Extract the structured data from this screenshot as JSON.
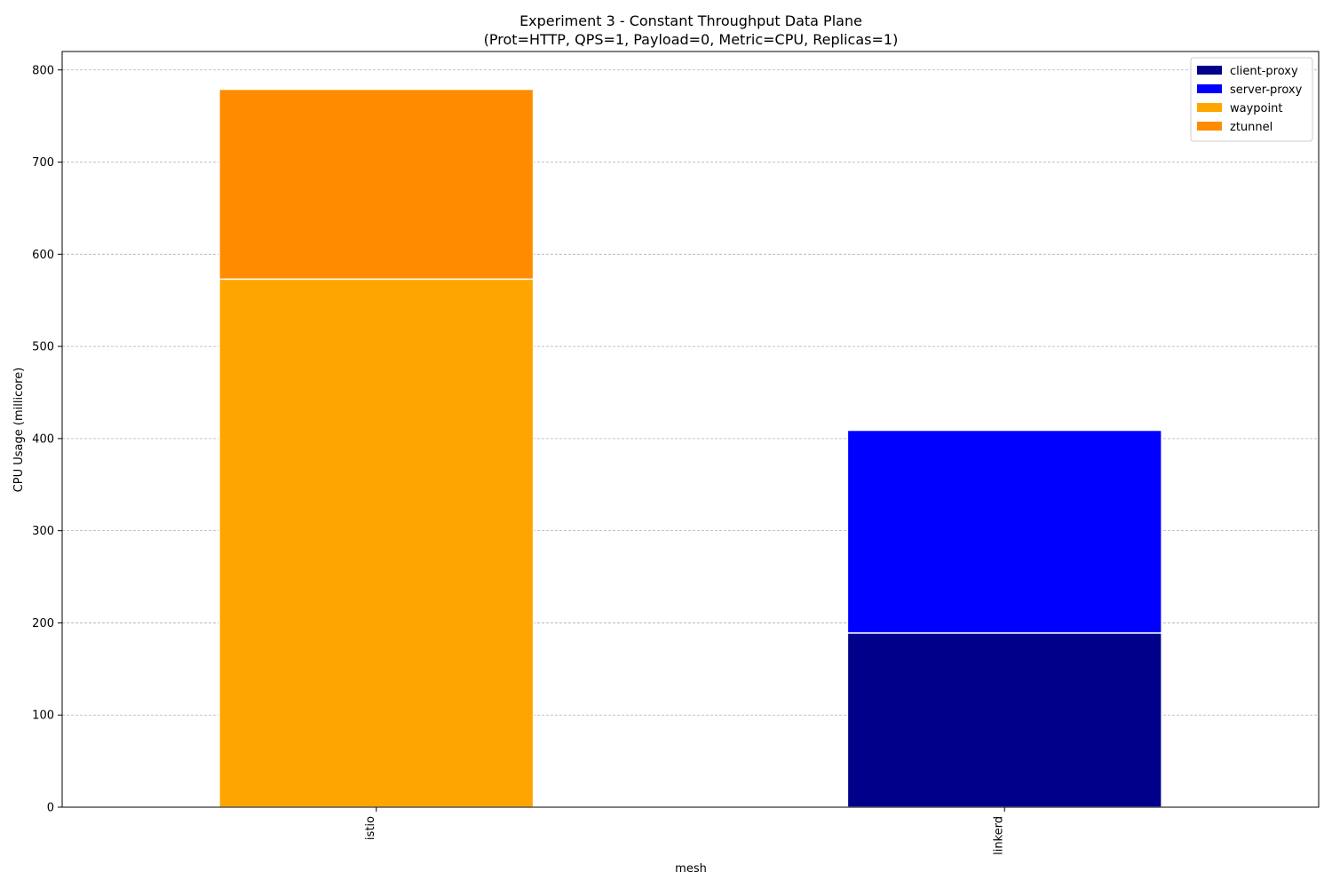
{
  "chart_data": {
    "type": "bar",
    "stacked": true,
    "title": "Experiment 3 - Constant Throughput Data Plane",
    "subtitle": "(Prot=HTTP, QPS=1, Payload=0, Metric=CPU, Replicas=1)",
    "xlabel": "mesh",
    "ylabel": "CPU Usage (millicore)",
    "categories": [
      "istio",
      "linkerd"
    ],
    "ylim": [
      0,
      820
    ],
    "yticks": [
      0,
      100,
      200,
      300,
      400,
      500,
      600,
      700,
      800
    ],
    "grid": "y",
    "legend_position": "top-right",
    "series": [
      {
        "name": "client-proxy",
        "color": "#00008b",
        "values": [
          0,
          189
        ]
      },
      {
        "name": "server-proxy",
        "color": "#0000ff",
        "values": [
          0,
          220
        ]
      },
      {
        "name": "waypoint",
        "color": "#ffa500",
        "values": [
          573,
          0
        ]
      },
      {
        "name": "ztunnel",
        "color": "#ff8c00",
        "values": [
          206,
          0
        ]
      }
    ]
  }
}
